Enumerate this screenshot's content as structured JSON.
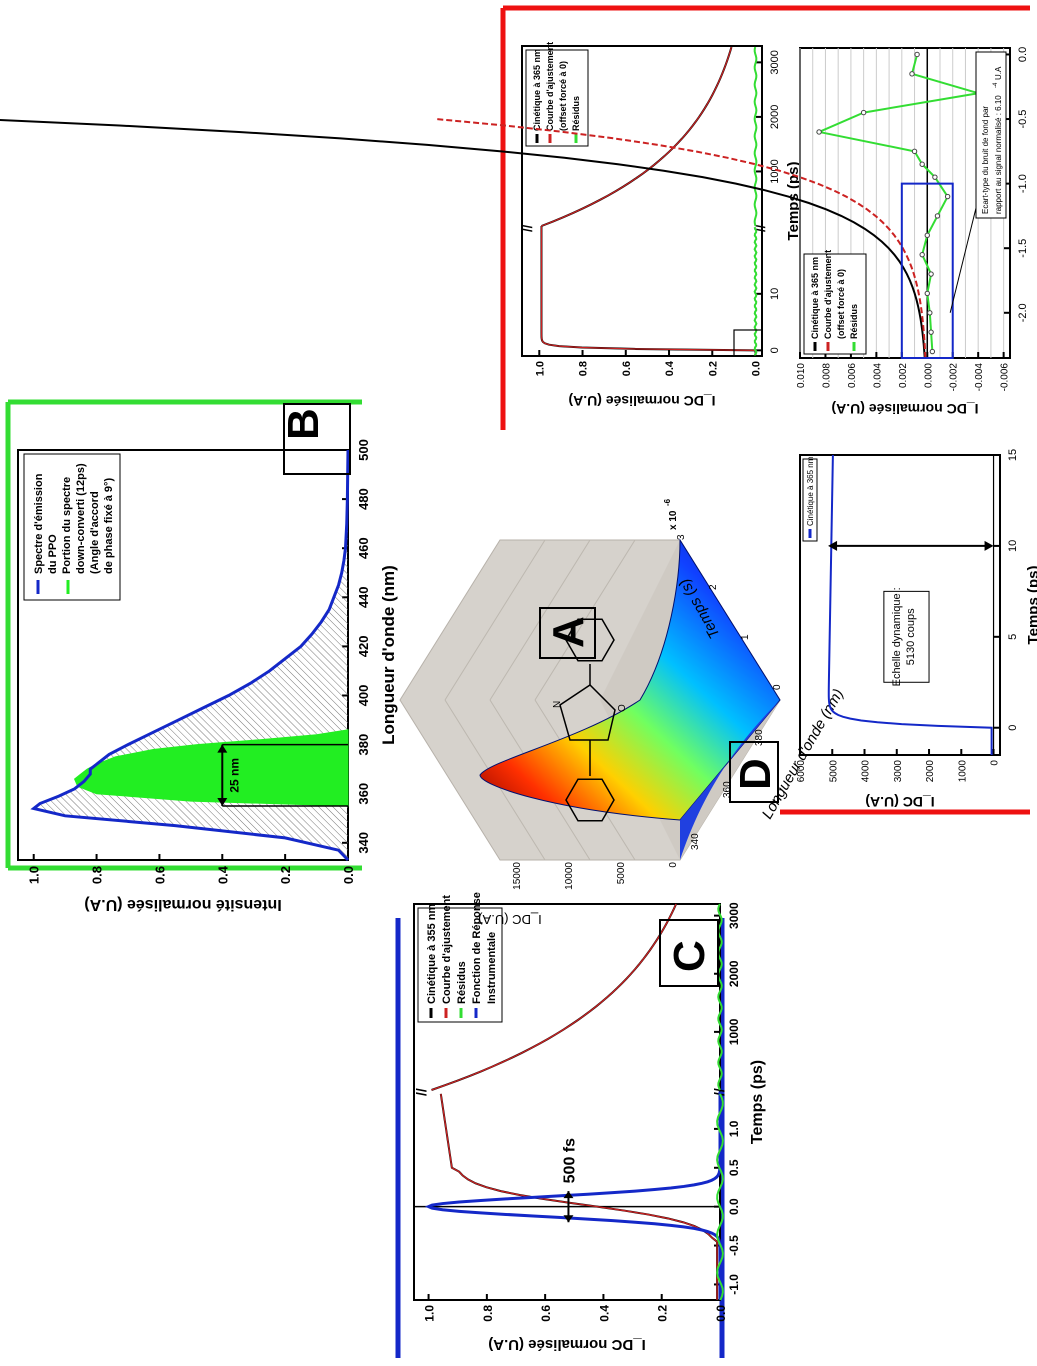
{
  "panels": {
    "A": {
      "letter": "A",
      "zlabel": "I_DC (U.A)",
      "z_ticks": [
        "15000",
        "10000",
        "5000",
        "0"
      ],
      "x_label": "Longueur d'onde (nm)",
      "x_ticks": [
        "340",
        "360",
        "380"
      ],
      "y_label": "Temps (s)",
      "y_ticks": [
        "0",
        "1",
        "2",
        "3"
      ],
      "y_multiplier": "x 10",
      "y_multiplier_exp": "-6",
      "molecule_atoms": [
        "N",
        "O"
      ]
    },
    "B": {
      "letter": "B",
      "chart_data": {
        "type": "area",
        "xlabel": "Longueur d'onde (nm)",
        "ylabel": "Intensité normalisée (U.A)",
        "x_ticks": [
          "340",
          "360",
          "380",
          "400",
          "420",
          "440",
          "460",
          "480",
          "500"
        ],
        "y_ticks": [
          "0.0",
          "0.2",
          "0.4",
          "0.6",
          "0.8",
          "1.0"
        ],
        "xlim": [
          333,
          500
        ],
        "ylim": [
          0,
          1.05
        ],
        "series": [
          {
            "name": "Spectre d'émission du PPO",
            "color": "#1428c8",
            "x": [
              333,
              337,
              342,
              347,
              351,
              354,
              356,
              359,
              362,
              365,
              368,
              370,
              372,
              376,
              380,
              385,
              390,
              395,
              400,
              405,
              410,
              415,
              420,
              425,
              430,
              435,
              440,
              445,
              450,
              455,
              460,
              470,
              480,
              490,
              500
            ],
            "y": [
              0,
              0.03,
              0.2,
              0.55,
              0.9,
              1.0,
              0.98,
              0.92,
              0.87,
              0.84,
              0.82,
              0.82,
              0.8,
              0.76,
              0.7,
              0.62,
              0.54,
              0.46,
              0.38,
              0.31,
              0.25,
              0.2,
              0.15,
              0.115,
              0.085,
              0.06,
              0.045,
              0.03,
              0.02,
              0.013,
              0.008,
              0.004,
              0.002,
              0.001,
              0
            ]
          },
          {
            "name": "Portion du spectre down-converti (12ps) (Angle d'accord de phase fixé à 9°)",
            "color": "#22ee22",
            "x": [
              355,
              357,
              360,
              363,
              366,
              368,
              370,
              372,
              375,
              378,
              380,
              382,
              384,
              386
            ],
            "y": [
              0,
              0.5,
              0.8,
              0.86,
              0.87,
              0.85,
              0.83,
              0.8,
              0.74,
              0.62,
              0.48,
              0.28,
              0.1,
              0
            ]
          }
        ],
        "annotation": "25 nm",
        "annotation_span": [
          355,
          380
        ],
        "legend_lines": [
          "Spectre d'émission",
          "du PPO",
          "Portion du spectre",
          "down-converti (12ps)",
          "(Angle d'accord",
          "de phase fixé à 9°)"
        ]
      }
    },
    "C": {
      "letter": "C",
      "chart_data": {
        "type": "line",
        "xlabel": "Temps (ps)",
        "ylabel": "I_DC normalisée (U.A)",
        "x_ticks_left": [
          "-1.0",
          "-0.5",
          "0.0",
          "0.5",
          "1.0"
        ],
        "x_ticks_right": [
          "1000",
          "2000",
          "3000"
        ],
        "y_ticks": [
          "0.0",
          "0.2",
          "0.4",
          "0.6",
          "0.8",
          "1.0"
        ],
        "annotation": "500 fs",
        "series": [
          {
            "name": "Cinétique à 355 nm",
            "color": "#000000"
          },
          {
            "name": "Courbe d'ajustement",
            "color": "#cc2222"
          },
          {
            "name": "Résidus",
            "color": "#33dd33"
          },
          {
            "name": "Fonction de Réponse Instrumentale",
            "color": "#1428c8"
          }
        ],
        "legend_lines": [
          "Cinétique à 355 nm",
          "Courbe d'ajustement",
          "Résidus",
          "Fonction de Réponse",
          "Instrumentale"
        ]
      }
    },
    "D": {
      "letter": "D",
      "main": {
        "xlabel": "Temps (ps)",
        "ylabel": "I_DC normalisée (U.A)",
        "x_ticks_left": [
          "0",
          "10"
        ],
        "x_ticks_right": [
          "1000",
          "2000",
          "3000"
        ],
        "y_ticks": [
          "0.0",
          "0.2",
          "0.4",
          "0.6",
          "0.8",
          "1.0"
        ],
        "legend_lines": [
          "Cinétique à 365 nm",
          "Courbe d'ajustement",
          "(offset forcé à 0)",
          "Résidus"
        ]
      },
      "counts": {
        "xlabel": "Temps (ps)",
        "ylabel": "I_DC (U.A)",
        "x_ticks": [
          "0",
          "5",
          "10",
          "15"
        ],
        "y_ticks": [
          "0",
          "1000",
          "2000",
          "3000",
          "4000",
          "5000",
          "6000"
        ],
        "legend": "Cinétique à 365 nm",
        "annotation_lines": [
          "Echelle dynamique :",
          "5130 coups"
        ],
        "plateau": 5130
      },
      "zoom": {
        "xlabel": "Temps (ps)",
        "ylabel": "I_DC normalisée (U.A)",
        "x_ticks": [
          "-2.0",
          "-1.5",
          "-1.0",
          "-0.5",
          "0.0"
        ],
        "y_ticks": [
          "-0.006",
          "-0.004",
          "-0.002",
          "0.000",
          "0.002",
          "0.004",
          "0.006",
          "0.008",
          "0.010"
        ],
        "legend_lines": [
          "Cinétique à 365 nm",
          "Courbe d'ajustement",
          "(offset forcé à 0)",
          "Résidus"
        ],
        "note_lines": [
          "Ecart-type du bruit de fond par",
          "rapport au signal normalisé : 6.10"
        ],
        "note_exp": "-4",
        "note_unit": " U.A",
        "residuals": {
          "x": [
            -2.3,
            -2.15,
            -2.0,
            -1.85,
            -1.7,
            -1.55,
            -1.4,
            -1.25,
            -1.1,
            -0.95,
            -0.85,
            -0.75,
            -0.6,
            -0.45,
            -0.3,
            -0.15,
            0.0
          ],
          "y": [
            -0.0004,
            -0.0003,
            -0.0002,
            0.0,
            -0.0003,
            0.0004,
            0.0,
            -0.0008,
            -0.0016,
            -0.0006,
            0.0004,
            0.001,
            0.0085,
            0.005,
            -0.004,
            0.0012,
            0.0008
          ]
        }
      }
    }
  }
}
